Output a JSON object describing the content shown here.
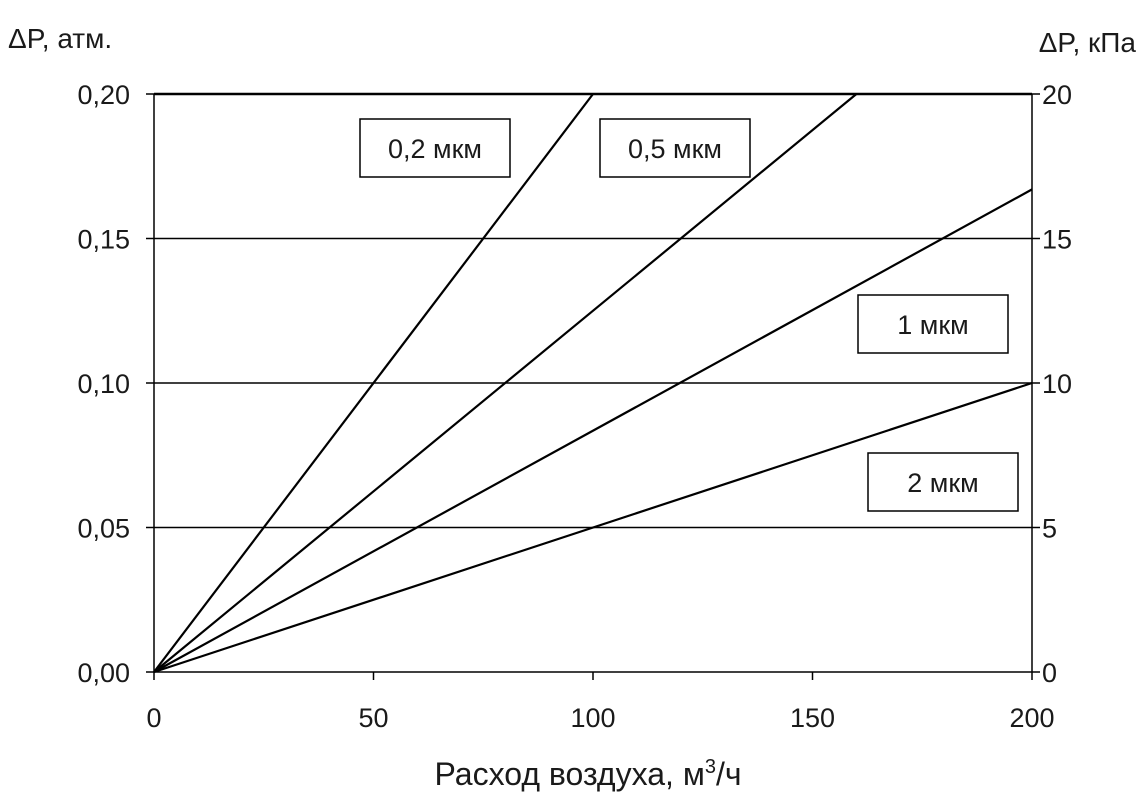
{
  "chart_data": {
    "type": "line",
    "title": "",
    "xlabel": "Расход воздуха, м",
    "xlabel_sup": "3",
    "xlabel_suffix": "/ч",
    "ylabel_left": "ΔP, атм.",
    "ylabel_right": "ΔP, кПа",
    "xlim": [
      0,
      200
    ],
    "ylim_left": [
      0,
      0.2
    ],
    "ylim_right": [
      0,
      20
    ],
    "x_ticks": [
      0,
      50,
      100,
      150,
      200
    ],
    "x_tick_labels": [
      "0",
      "50",
      "100",
      "150",
      "200"
    ],
    "y_left_ticks": [
      0,
      0.05,
      0.1,
      0.15,
      0.2
    ],
    "y_left_tick_labels": [
      "0,00",
      "0,05",
      "0,10",
      "0,15",
      "0,20"
    ],
    "y_right_ticks": [
      0,
      5,
      10,
      15,
      20
    ],
    "y_right_tick_labels": [
      "0",
      "5",
      "10",
      "15",
      "20"
    ],
    "grid": "horizontal",
    "series": [
      {
        "name": "0,2 мкм",
        "x": [
          0,
          100
        ],
        "y": [
          0,
          0.2
        ]
      },
      {
        "name": "0,5 мкм",
        "x": [
          0,
          160
        ],
        "y": [
          0,
          0.2
        ]
      },
      {
        "name": "1 мкм",
        "x": [
          0,
          200
        ],
        "y": [
          0,
          0.167
        ]
      },
      {
        "name": "2 мкм",
        "x": [
          0,
          200
        ],
        "y": [
          0,
          0.1
        ]
      }
    ]
  }
}
